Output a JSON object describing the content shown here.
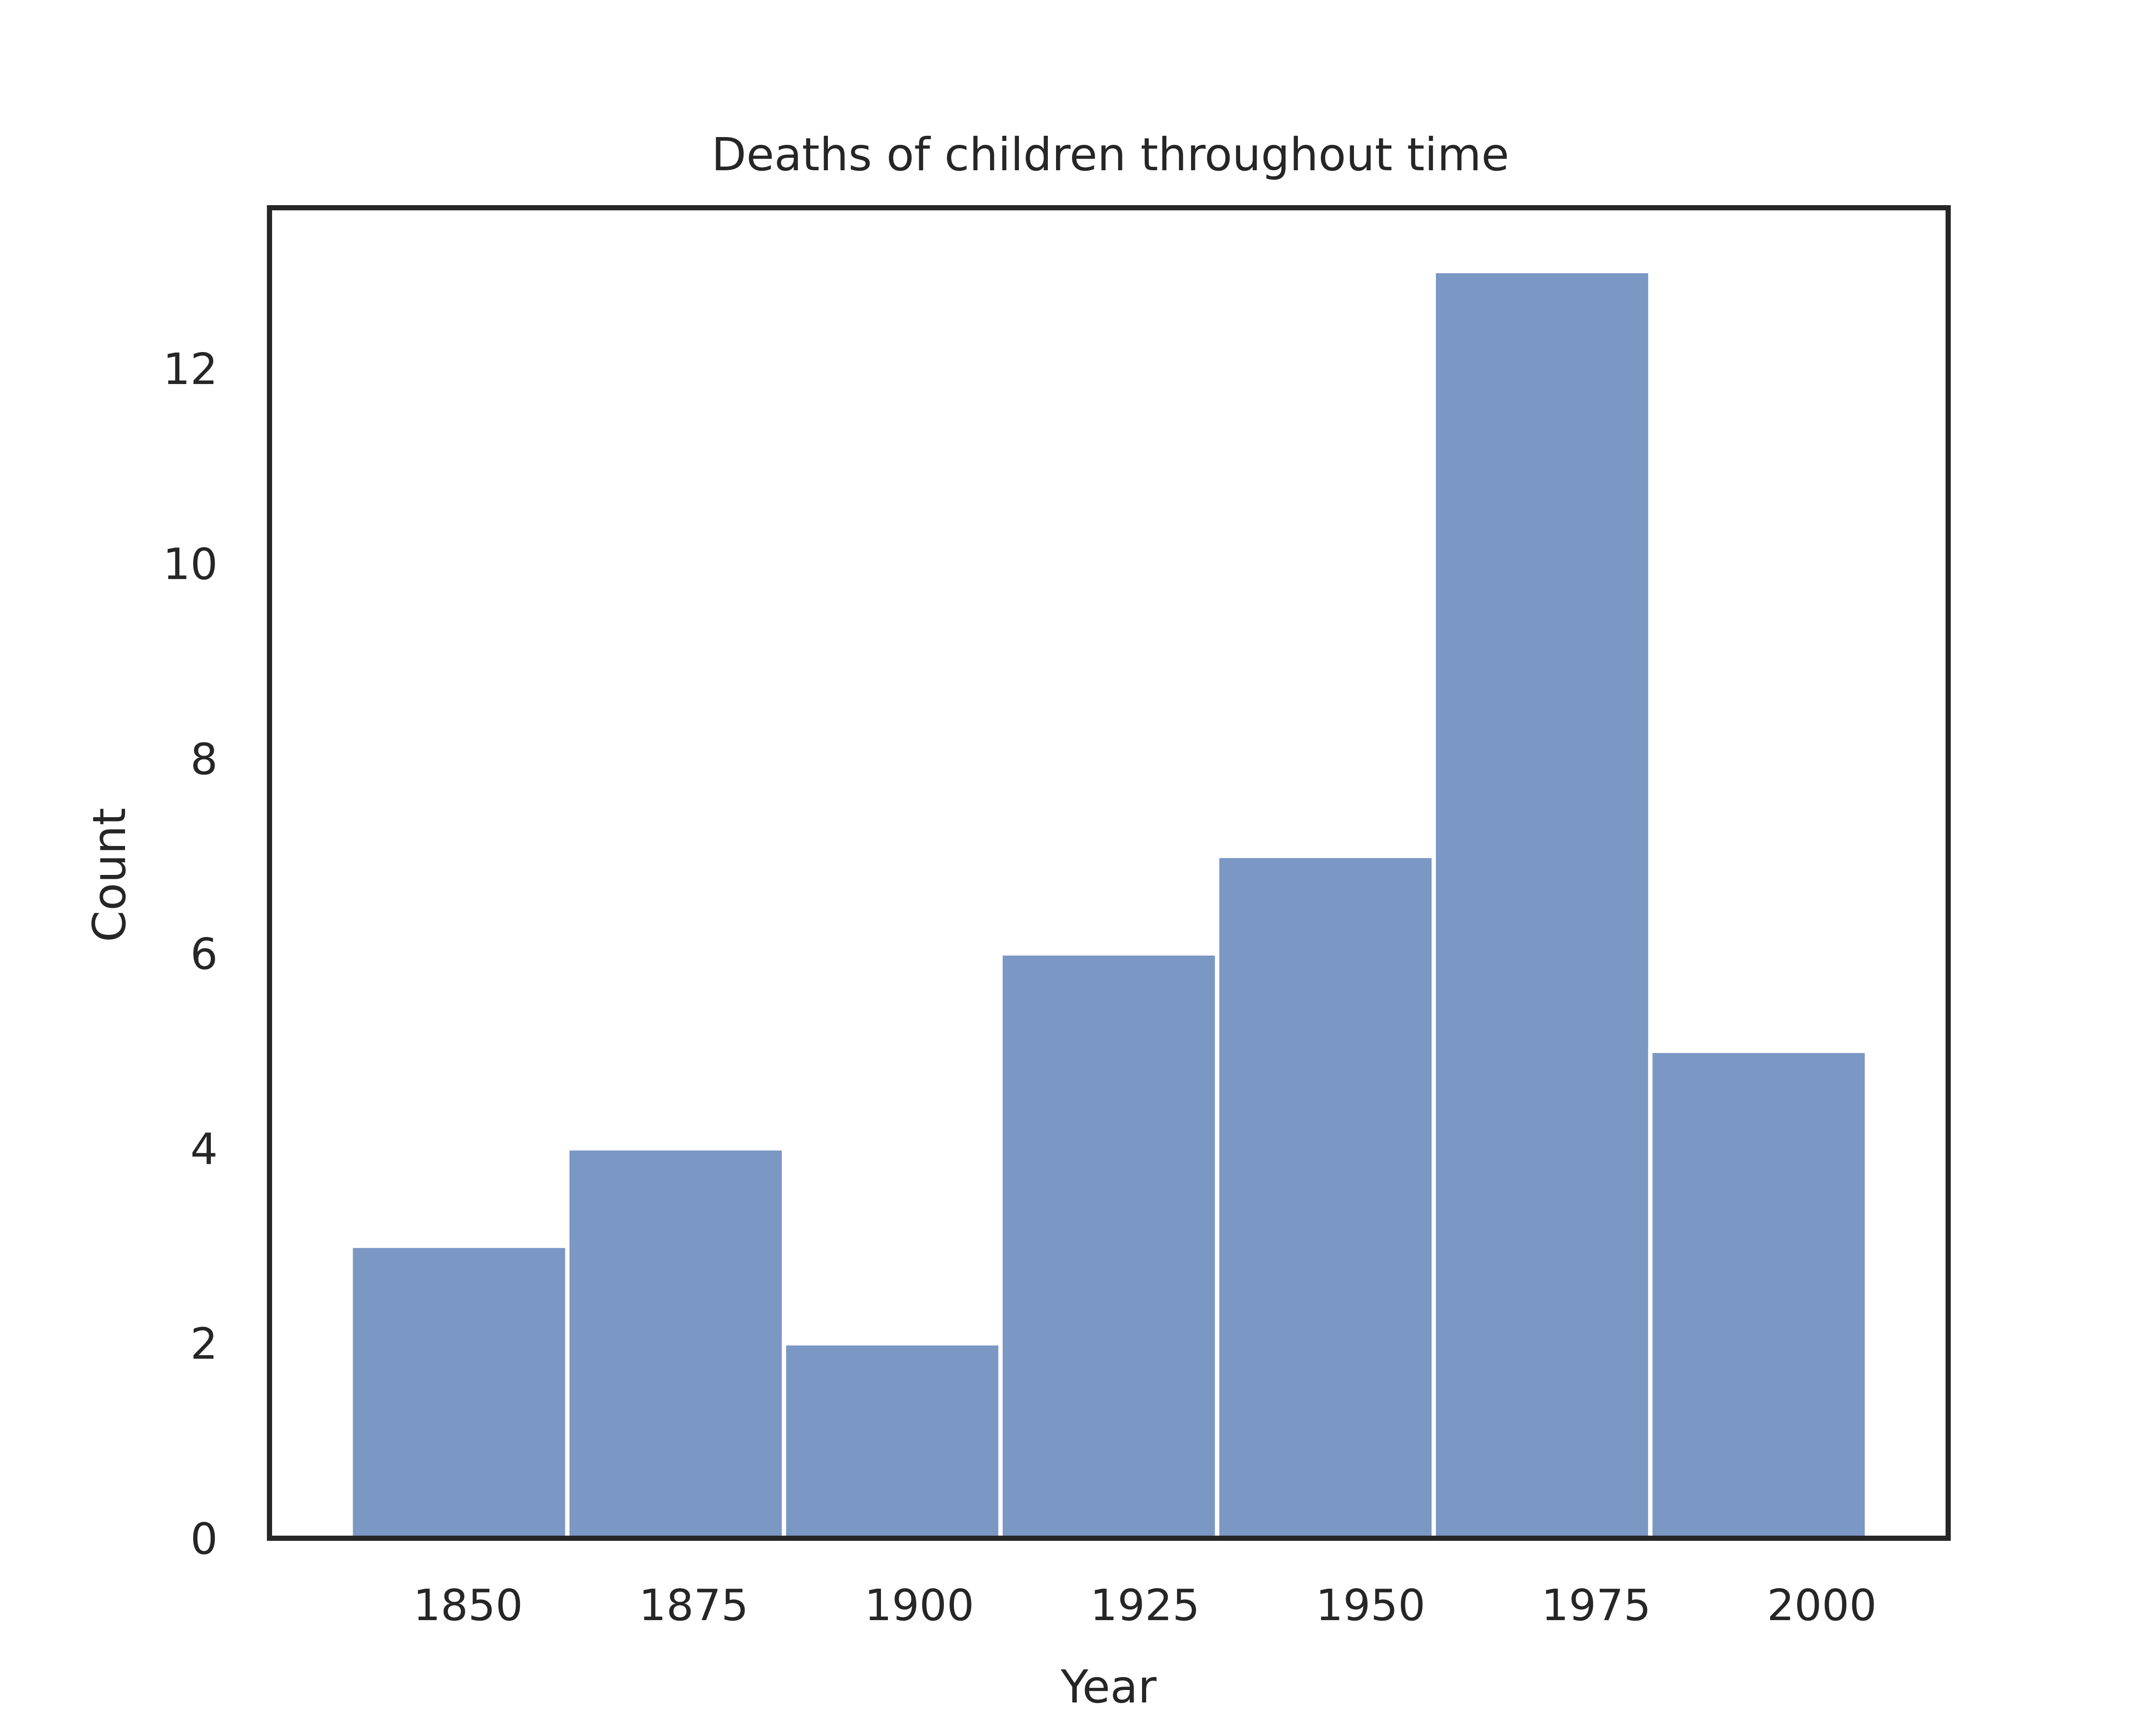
{
  "chart_data": {
    "type": "bar",
    "title": "Deaths of children throughout time",
    "xlabel": "Year",
    "ylabel": "Count",
    "bins": [
      {
        "start": 1837,
        "end": 1861,
        "count": 3
      },
      {
        "start": 1861,
        "end": 1885,
        "count": 4
      },
      {
        "start": 1885,
        "end": 1909,
        "count": 2
      },
      {
        "start": 1909,
        "end": 1933,
        "count": 6
      },
      {
        "start": 1933,
        "end": 1957,
        "count": 7
      },
      {
        "start": 1957,
        "end": 1981,
        "count": 13
      },
      {
        "start": 1981,
        "end": 2005,
        "count": 5
      }
    ],
    "xlim": [
      1828,
      2014
    ],
    "ylim": [
      0,
      13.65
    ],
    "xticks": [
      1850,
      1875,
      1900,
      1925,
      1950,
      1975,
      2000
    ],
    "yticks": [
      0,
      2,
      4,
      6,
      8,
      10,
      12
    ],
    "bar_color": "#7b97c4",
    "grid": false
  }
}
